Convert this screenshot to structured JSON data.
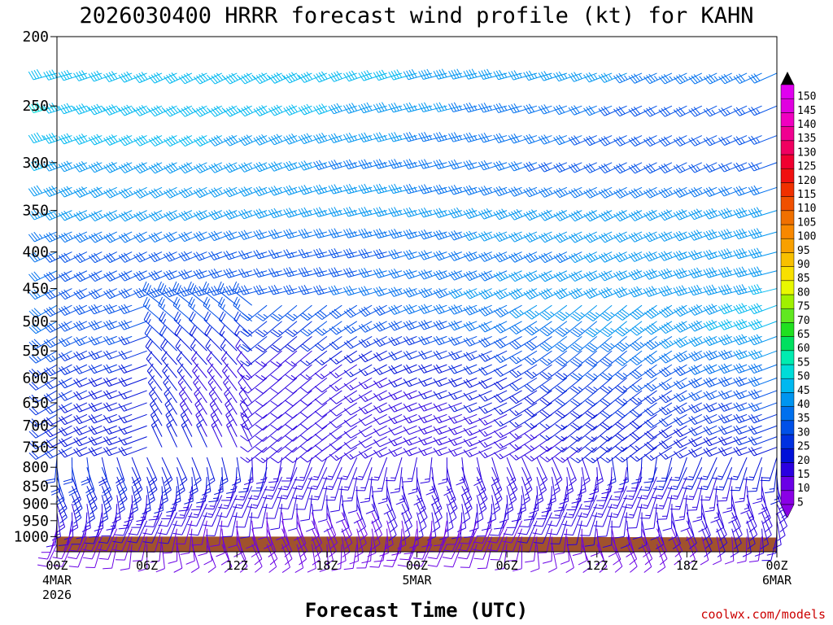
{
  "chart_data": {
    "type": "wind-barb-time-height",
    "title": "2026030400 HRRR forecast wind profile (kt) for KAHN",
    "xlabel": "Forecast Time (UTC)",
    "ylabel": "",
    "credit": "coolwx.com/models",
    "y_axis": {
      "scale": "log-pressure",
      "inverted": true,
      "range": [
        1050,
        200
      ],
      "ticks": [
        200,
        250,
        300,
        350,
        400,
        450,
        500,
        550,
        600,
        650,
        700,
        750,
        800,
        850,
        900,
        950,
        1000
      ]
    },
    "x_axis": {
      "range_hours": [
        0,
        48
      ],
      "ticks": [
        {
          "h": 0,
          "label": "00Z",
          "sub1": "4MAR",
          "sub2": "2026"
        },
        {
          "h": 6,
          "label": "06Z",
          "sub1": "",
          "sub2": ""
        },
        {
          "h": 12,
          "label": "12Z",
          "sub1": "",
          "sub2": ""
        },
        {
          "h": 18,
          "label": "18Z",
          "sub1": "",
          "sub2": ""
        },
        {
          "h": 24,
          "label": "00Z",
          "sub1": "5MAR",
          "sub2": ""
        },
        {
          "h": 30,
          "label": "06Z",
          "sub1": "",
          "sub2": ""
        },
        {
          "h": 36,
          "label": "12Z",
          "sub1": "",
          "sub2": ""
        },
        {
          "h": 42,
          "label": "18Z",
          "sub1": "",
          "sub2": ""
        },
        {
          "h": 48,
          "label": "00Z",
          "sub1": "6MAR",
          "sub2": ""
        }
      ]
    },
    "colorbar": {
      "levels": [
        5,
        10,
        15,
        20,
        25,
        30,
        35,
        40,
        45,
        50,
        55,
        60,
        65,
        70,
        75,
        80,
        85,
        90,
        95,
        100,
        105,
        110,
        115,
        120,
        125,
        130,
        135,
        140,
        145,
        150
      ],
      "colors": [
        "#8a00e6",
        "#6a00e6",
        "#2a00e0",
        "#0010d8",
        "#0030e0",
        "#0050e8",
        "#0070ee",
        "#0095f0",
        "#00b8f0",
        "#00dcd8",
        "#00ecb0",
        "#00e060",
        "#20e020",
        "#60e820",
        "#a0f000",
        "#e8f800",
        "#f8e000",
        "#f8c000",
        "#f8a000",
        "#f88800",
        "#f07000",
        "#f05000",
        "#f03000",
        "#f01010",
        "#f00030",
        "#f00060",
        "#f00090",
        "#f000c0",
        "#e000e0",
        "#e000f0"
      ]
    },
    "surface": {
      "color": "#a0522d",
      "pressure_left": 1000,
      "pressure_right": 1003
    },
    "wind_speed_kt": {
      "200": [
        38,
        44,
        42,
        38
      ],
      "250": [
        45,
        42,
        32,
        26
      ],
      "300": [
        40,
        36,
        30,
        26
      ],
      "350": [
        36,
        36,
        38,
        38
      ],
      "400": [
        30,
        26,
        34,
        38
      ],
      "450": [
        30,
        28,
        38,
        40
      ],
      "500": [
        30,
        24,
        32,
        42
      ],
      "550": [
        26,
        14,
        26,
        36
      ],
      "600": [
        22,
        10,
        20,
        30
      ],
      "700": [
        20,
        10,
        14,
        22
      ],
      "800": [
        22,
        14,
        14,
        16
      ],
      "900": [
        14,
        10,
        12,
        12
      ],
      "1000": [
        8,
        8,
        8,
        10
      ]
    },
    "wind_direction_deg": {
      "upper_levels": 250,
      "mid_levels": 240,
      "low_levels": 180
    }
  }
}
